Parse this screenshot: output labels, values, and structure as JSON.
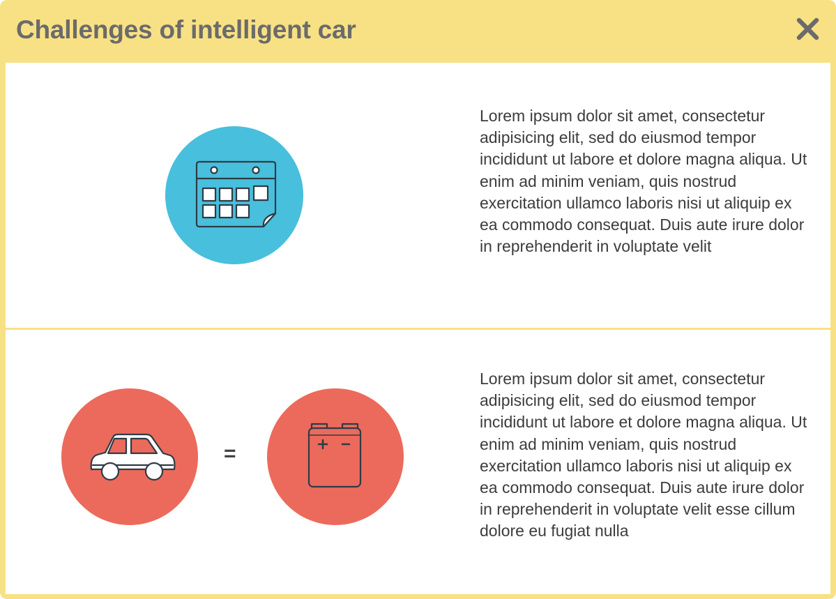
{
  "dialog": {
    "title": "Challenges of intelligent car",
    "close_icon": "close-x-icon",
    "colors": {
      "frame": "#f8e184",
      "title_text": "#6b6b6b",
      "calendar_circle": "#48bfdc",
      "car_circle": "#ec6a5c",
      "battery_circle": "#ec6a5c",
      "body_text": "#3c3c3c"
    }
  },
  "sections": [
    {
      "icons": [
        "calendar-icon"
      ],
      "text": "Lorem ipsum dolor sit amet, consectetur adipisicing elit, sed do eiusmod tempor incididunt ut labore et dolore magna aliqua. Ut enim ad minim veniam, quis nostrud exercitation ullamco laboris nisi ut aliquip ex ea commodo consequat. Duis aute irure dolor in reprehenderit in voluptate velit"
    },
    {
      "icons": [
        "car-icon",
        "battery-icon"
      ],
      "operator": "=",
      "text": "Lorem ipsum dolor sit amet, consectetur adipisicing elit, sed do eiusmod tempor incididunt ut labore et dolore magna aliqua. Ut enim ad minim veniam, quis nostrud exercitation ullamco laboris nisi ut aliquip ex ea commodo consequat. Duis aute irure dolor in reprehenderit in voluptate velit esse cillum dolore eu fugiat nulla"
    }
  ]
}
